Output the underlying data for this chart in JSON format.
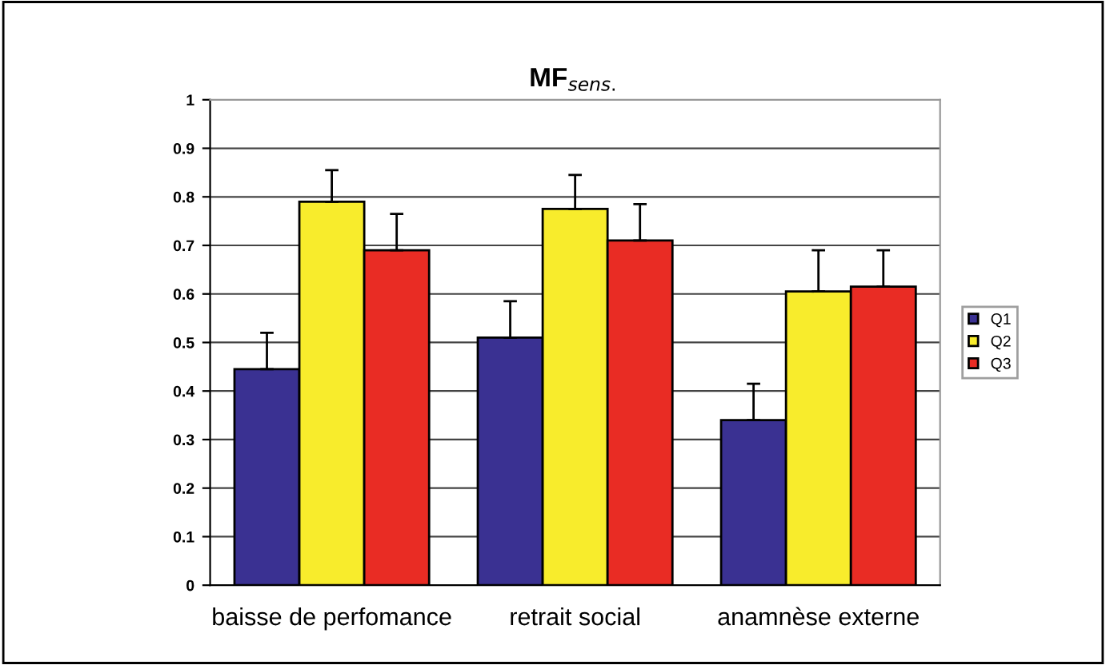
{
  "chart_data": {
    "type": "bar",
    "title": "MF$_{sens.}$",
    "categories": [
      "baisse de perfomance",
      "retrait social",
      "anamnèse externe"
    ],
    "series": [
      {
        "name": "Q1",
        "color": "#3a3192",
        "values": [
          0.445,
          0.51,
          0.34
        ],
        "errors": [
          [
            0.445,
            0.52
          ],
          [
            0.51,
            0.585
          ],
          [
            0.34,
            0.415
          ]
        ]
      },
      {
        "name": "Q2",
        "color": "#f8ec2c",
        "values": [
          0.79,
          0.775,
          0.605
        ],
        "errors": [
          [
            0.79,
            0.855
          ],
          [
            0.775,
            0.845
          ],
          [
            0.605,
            0.69
          ]
        ]
      },
      {
        "name": "Q3",
        "color": "#e92c24",
        "values": [
          0.69,
          0.71,
          0.615
        ],
        "errors": [
          [
            0.69,
            0.765
          ],
          [
            0.71,
            0.785
          ],
          [
            0.615,
            0.69
          ]
        ]
      }
    ],
    "ylim": [
      0,
      1
    ],
    "yticks": [
      0,
      0.1,
      0.2,
      0.3,
      0.4,
      0.5,
      0.6,
      0.7,
      0.8,
      0.9,
      1
    ],
    "grid": "y",
    "legend": "right"
  }
}
